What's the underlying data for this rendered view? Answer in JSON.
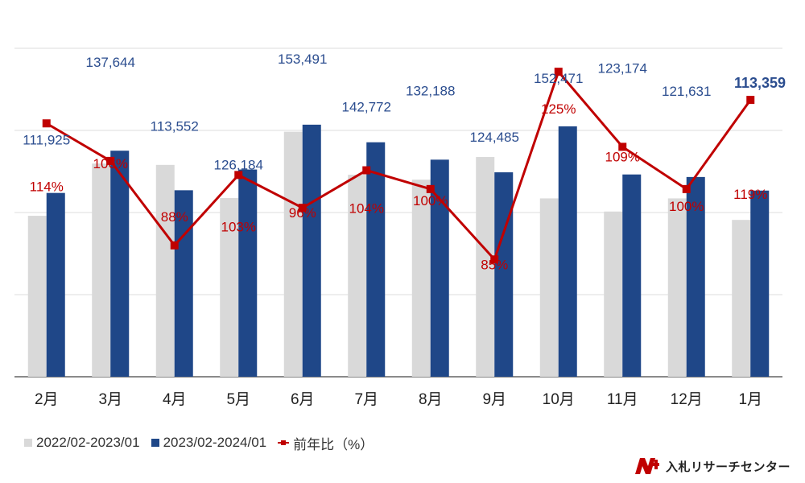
{
  "chart_data": {
    "type": "bar",
    "categories": [
      "2月",
      "3月",
      "4月",
      "5月",
      "6月",
      "7月",
      "8月",
      "9月",
      "10月",
      "11月",
      "12月",
      "1月"
    ],
    "series": [
      {
        "name": "2022/02-2023/01",
        "type": "bar",
        "color": "#d9d9d9",
        "values": [
          98000,
          129800,
          129000,
          108800,
          149200,
          123000,
          120000,
          133800,
          108600,
          100600,
          108600,
          95500
        ]
      },
      {
        "name": "2023/02-2024/01",
        "type": "bar",
        "color": "#1f4788",
        "values": [
          111925,
          137644,
          113552,
          126184,
          153491,
          142772,
          132188,
          124485,
          152471,
          123174,
          121631,
          113359
        ]
      },
      {
        "name": "前年比（%）",
        "type": "line",
        "color": "#c00000",
        "values": [
          114,
          106,
          88,
          103,
          96,
          104,
          100,
          85,
          125,
          109,
          100,
          119
        ]
      }
    ],
    "bar_labels": [
      "111,925",
      "137,644",
      "113,552",
      "126,184",
      "153,491",
      "142,772",
      "132,188",
      "124,485",
      "152,471",
      "123,174",
      "121,631",
      "113,359"
    ],
    "line_labels": [
      "114%",
      "106%",
      "88%",
      "103%",
      "96%",
      "104%",
      "100%",
      "85%",
      "125%",
      "109%",
      "100%",
      "119%"
    ],
    "y_left_range": [
      0,
      200000
    ],
    "y_right_range": [
      60,
      130
    ],
    "grid": true,
    "legend_position": "bottom-left"
  },
  "legend": {
    "items": [
      {
        "label": "2022/02-2023/01",
        "color": "#d9d9d9",
        "shape": "square"
      },
      {
        "label": "2023/02-2024/01",
        "color": "#1f4788",
        "shape": "square"
      },
      {
        "label": "前年比（%）",
        "color": "#c00000",
        "shape": "line-marker"
      }
    ]
  },
  "brand": {
    "logo_icon": "nyusatsu-logo-icon",
    "logo_color": "#c00000",
    "text": "入札リサーチセンター"
  }
}
